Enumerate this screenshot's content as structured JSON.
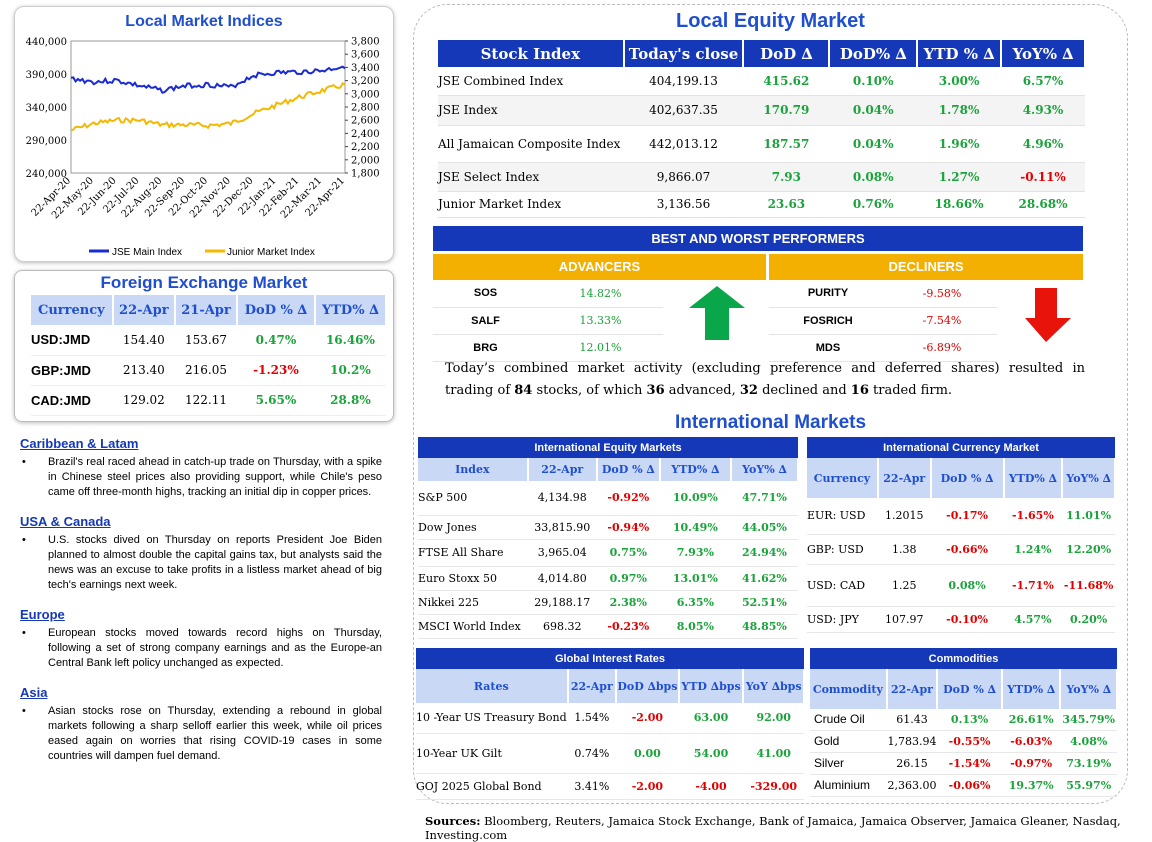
{
  "chart": {
    "title": "Local Market Indices",
    "left_ticks": [
      "440,000",
      "390,000",
      "340,000",
      "290,000",
      "240,000"
    ],
    "right_ticks": [
      "3,800",
      "3,600",
      "3,400",
      "3,200",
      "3,000",
      "2,800",
      "2,600",
      "2,400",
      "2,200",
      "2,000",
      "1,800"
    ],
    "x_ticks": [
      "22-Apr-20",
      "22-May-20",
      "22-Jun-20",
      "22-Jul-20",
      "22-Aug-20",
      "22-Sep-20",
      "22-Oct-20",
      "22-Nov-20",
      "22-Dec-20",
      "22-Jan-21",
      "22-Feb-21",
      "22-Mar-21",
      "22-Apr-21"
    ],
    "legend": [
      "JSE Main Index",
      "Junior Market Index"
    ],
    "colors": {
      "main": "#1a2bd6",
      "junior": "#f5b800"
    }
  },
  "chart_data": {
    "type": "line",
    "x": [
      "22-Apr-20",
      "22-May-20",
      "22-Jun-20",
      "22-Jul-20",
      "22-Aug-20",
      "22-Sep-20",
      "22-Oct-20",
      "22-Nov-20",
      "22-Dec-20",
      "22-Jan-21",
      "22-Feb-21",
      "22-Mar-21",
      "22-Apr-21"
    ],
    "series": [
      {
        "name": "JSE Main Index",
        "axis": "left",
        "values": [
          383000,
          378000,
          380000,
          372000,
          365000,
          372000,
          374000,
          370000,
          388000,
          392000,
          393000,
          395000,
          402000
        ]
      },
      {
        "name": "Junior Market Index",
        "axis": "right",
        "values": [
          2450,
          2550,
          2600,
          2600,
          2530,
          2530,
          2520,
          2550,
          2700,
          2830,
          2950,
          3050,
          3140
        ]
      }
    ],
    "ylim_left": [
      240000,
      440000
    ],
    "ylim_right": [
      1800,
      3800
    ]
  },
  "fx": {
    "title": "Foreign Exchange Market",
    "headers": [
      "Currency",
      "22-Apr",
      "21-Apr",
      "DoD % ∆",
      "YTD% ∆"
    ],
    "rows": [
      [
        "USD:JMD",
        "154.40",
        "153.67",
        "0.47%",
        "16.46%"
      ],
      [
        "GBP:JMD",
        "213.40",
        "216.05",
        "-1.23%",
        "10.2%"
      ],
      [
        "CAD:JMD",
        "129.02",
        "122.11",
        "5.65%",
        "28.8%"
      ]
    ]
  },
  "news": [
    {
      "h": "Caribbean & Latam",
      "p": "Brazil's real raced ahead in catch-up trade on Thursday, with a spike in Chinese steel prices also providing support, while Chile's peso came off three-month highs, tracking an initial dip in copper prices."
    },
    {
      "h": "USA & Canada",
      "p": "U.S. stocks dived on Thursday on reports President Joe Biden planned to almost double the capital gains tax, but analysts said the news was an excuse to take profits in a listless market ahead of big tech's earnings next week."
    },
    {
      "h": "Europe",
      "p": "European stocks moved towards record highs on Thursday, following a set of strong company earnings and as the Europe-an Central Bank left policy unchanged as expected."
    },
    {
      "h": "Asia",
      "p": "Asian stocks rose on Thursday, extending a rebound in global markets following a sharp selloff earlier this week, while oil prices eased again on worries that rising COVID-19 cases in some countries will dampen fuel demand."
    }
  ],
  "equity": {
    "title": "Local Equity Market",
    "headers": [
      "Stock Index",
      "Today's close",
      "DoD  ∆",
      "DoD% ∆",
      "YTD % ∆",
      "YoY% ∆"
    ],
    "rows": [
      [
        "JSE Combined Index",
        "404,199.13",
        "415.62",
        "0.10%",
        "3.00%",
        "6.57%"
      ],
      [
        "JSE Index",
        "402,637.35",
        "170.79",
        "0.04%",
        "1.78%",
        "4.93%"
      ],
      [
        "All Jamaican Composite Index",
        "442,013.12",
        "187.57",
        "0.04%",
        "1.96%",
        "4.96%"
      ],
      [
        "JSE Select Index",
        "9,866.07",
        "7.93",
        "0.08%",
        "1.27%",
        "-0.11%"
      ],
      [
        "Junior Market Index",
        "3,136.56",
        "23.63",
        "0.76%",
        "18.66%",
        "28.68%"
      ]
    ]
  },
  "performers": {
    "title": "BEST AND WORST PERFORMERS",
    "adv_label": "ADVANCERS",
    "dec_label": "DECLINERS",
    "advancers": [
      [
        "SOS",
        "14.82%"
      ],
      [
        "SALF",
        "13.33%"
      ],
      [
        "BRG",
        "12.01%"
      ]
    ],
    "decliners": [
      [
        "PURITY",
        "-9.58%"
      ],
      [
        "FOSRICH",
        "-7.54%"
      ],
      [
        "MDS",
        "-6.89%"
      ]
    ]
  },
  "summary": {
    "t1": "Today’s combined market activity (excluding preference and deferred shares) resulted in trading of ",
    "n1": "84",
    "t2": " stocks, of which ",
    "n2": "36",
    "t3": " advanced, ",
    "n3": "32",
    "t4": " declined and ",
    "n4": "16",
    "t5": " traded firm."
  },
  "intl": {
    "title": "International Markets",
    "equity": {
      "title": "International Equity Markets",
      "headers": [
        "Index",
        "22-Apr",
        "DoD % ∆",
        "YTD% ∆",
        "YoY% ∆"
      ],
      "rows": [
        [
          "S&P 500",
          "4,134.98",
          "-0.92%",
          "10.09%",
          "47.71%"
        ],
        [
          "Dow Jones",
          "33,815.90",
          "-0.94%",
          "10.49%",
          "44.05%"
        ],
        [
          "FTSE All Share",
          "3,965.04",
          "0.75%",
          "7.93%",
          "24.94%"
        ],
        [
          "Euro Stoxx 50",
          "4,014.80",
          "0.97%",
          "13.01%",
          "41.62%"
        ],
        [
          "Nikkei 225",
          "29,188.17",
          "2.38%",
          "6.35%",
          "52.51%"
        ],
        [
          "MSCI World Index",
          "698.32",
          "-0.23%",
          "8.05%",
          "48.85%"
        ]
      ]
    },
    "currency": {
      "title": "International Currency Market",
      "headers": [
        "Currency",
        "22-Apr",
        "DoD % ∆",
        "YTD% ∆",
        "YoY% ∆"
      ],
      "rows": [
        [
          "EUR: USD",
          "1.2015",
          "-0.17%",
          "-1.65%",
          "11.01%"
        ],
        [
          "GBP: USD",
          "1.38",
          "-0.66%",
          "1.24%",
          "12.20%"
        ],
        [
          "USD: CAD",
          "1.25",
          "0.08%",
          "-1.71%",
          "-11.68%"
        ],
        [
          "USD: JPY",
          "107.97",
          "-0.10%",
          "4.57%",
          "0.20%"
        ]
      ]
    },
    "rates": {
      "title": "Global Interest Rates",
      "headers": [
        "Rates",
        "22-Apr",
        "DoD ∆bps",
        "YTD ∆bps",
        "YoY ∆bps"
      ],
      "rows": [
        [
          "10 -Year US Treasury Bond",
          "1.54%",
          "-2.00",
          "63.00",
          "92.00"
        ],
        [
          "10-Year UK Gilt",
          "0.74%",
          "0.00",
          "54.00",
          "41.00"
        ],
        [
          "GOJ 2025 Global Bond",
          "3.41%",
          "-2.00",
          "-4.00",
          "-329.00"
        ]
      ]
    },
    "commodities": {
      "title": "Commodities",
      "headers": [
        "Commodity",
        "22-Apr",
        "DoD % ∆",
        "YTD% ∆",
        "YoY% ∆"
      ],
      "rows": [
        [
          "Crude Oil",
          "61.43",
          "0.13%",
          "26.61%",
          "345.79%"
        ],
        [
          "Gold",
          "1,783.94",
          "-0.55%",
          "-6.03%",
          "4.08%"
        ],
        [
          "Silver",
          "26.15",
          "-1.54%",
          "-0.97%",
          "73.19%"
        ],
        [
          "Aluminium",
          "2,363.00",
          "-0.06%",
          "19.37%",
          "55.97%"
        ]
      ]
    }
  },
  "sources": {
    "label": "Sources:",
    "text": " Bloomberg, Reuters, Jamaica Stock Exchange, Bank of Jamaica, Jamaica Observer, Jamaica Gleaner, Nasdaq, Investing.com"
  }
}
